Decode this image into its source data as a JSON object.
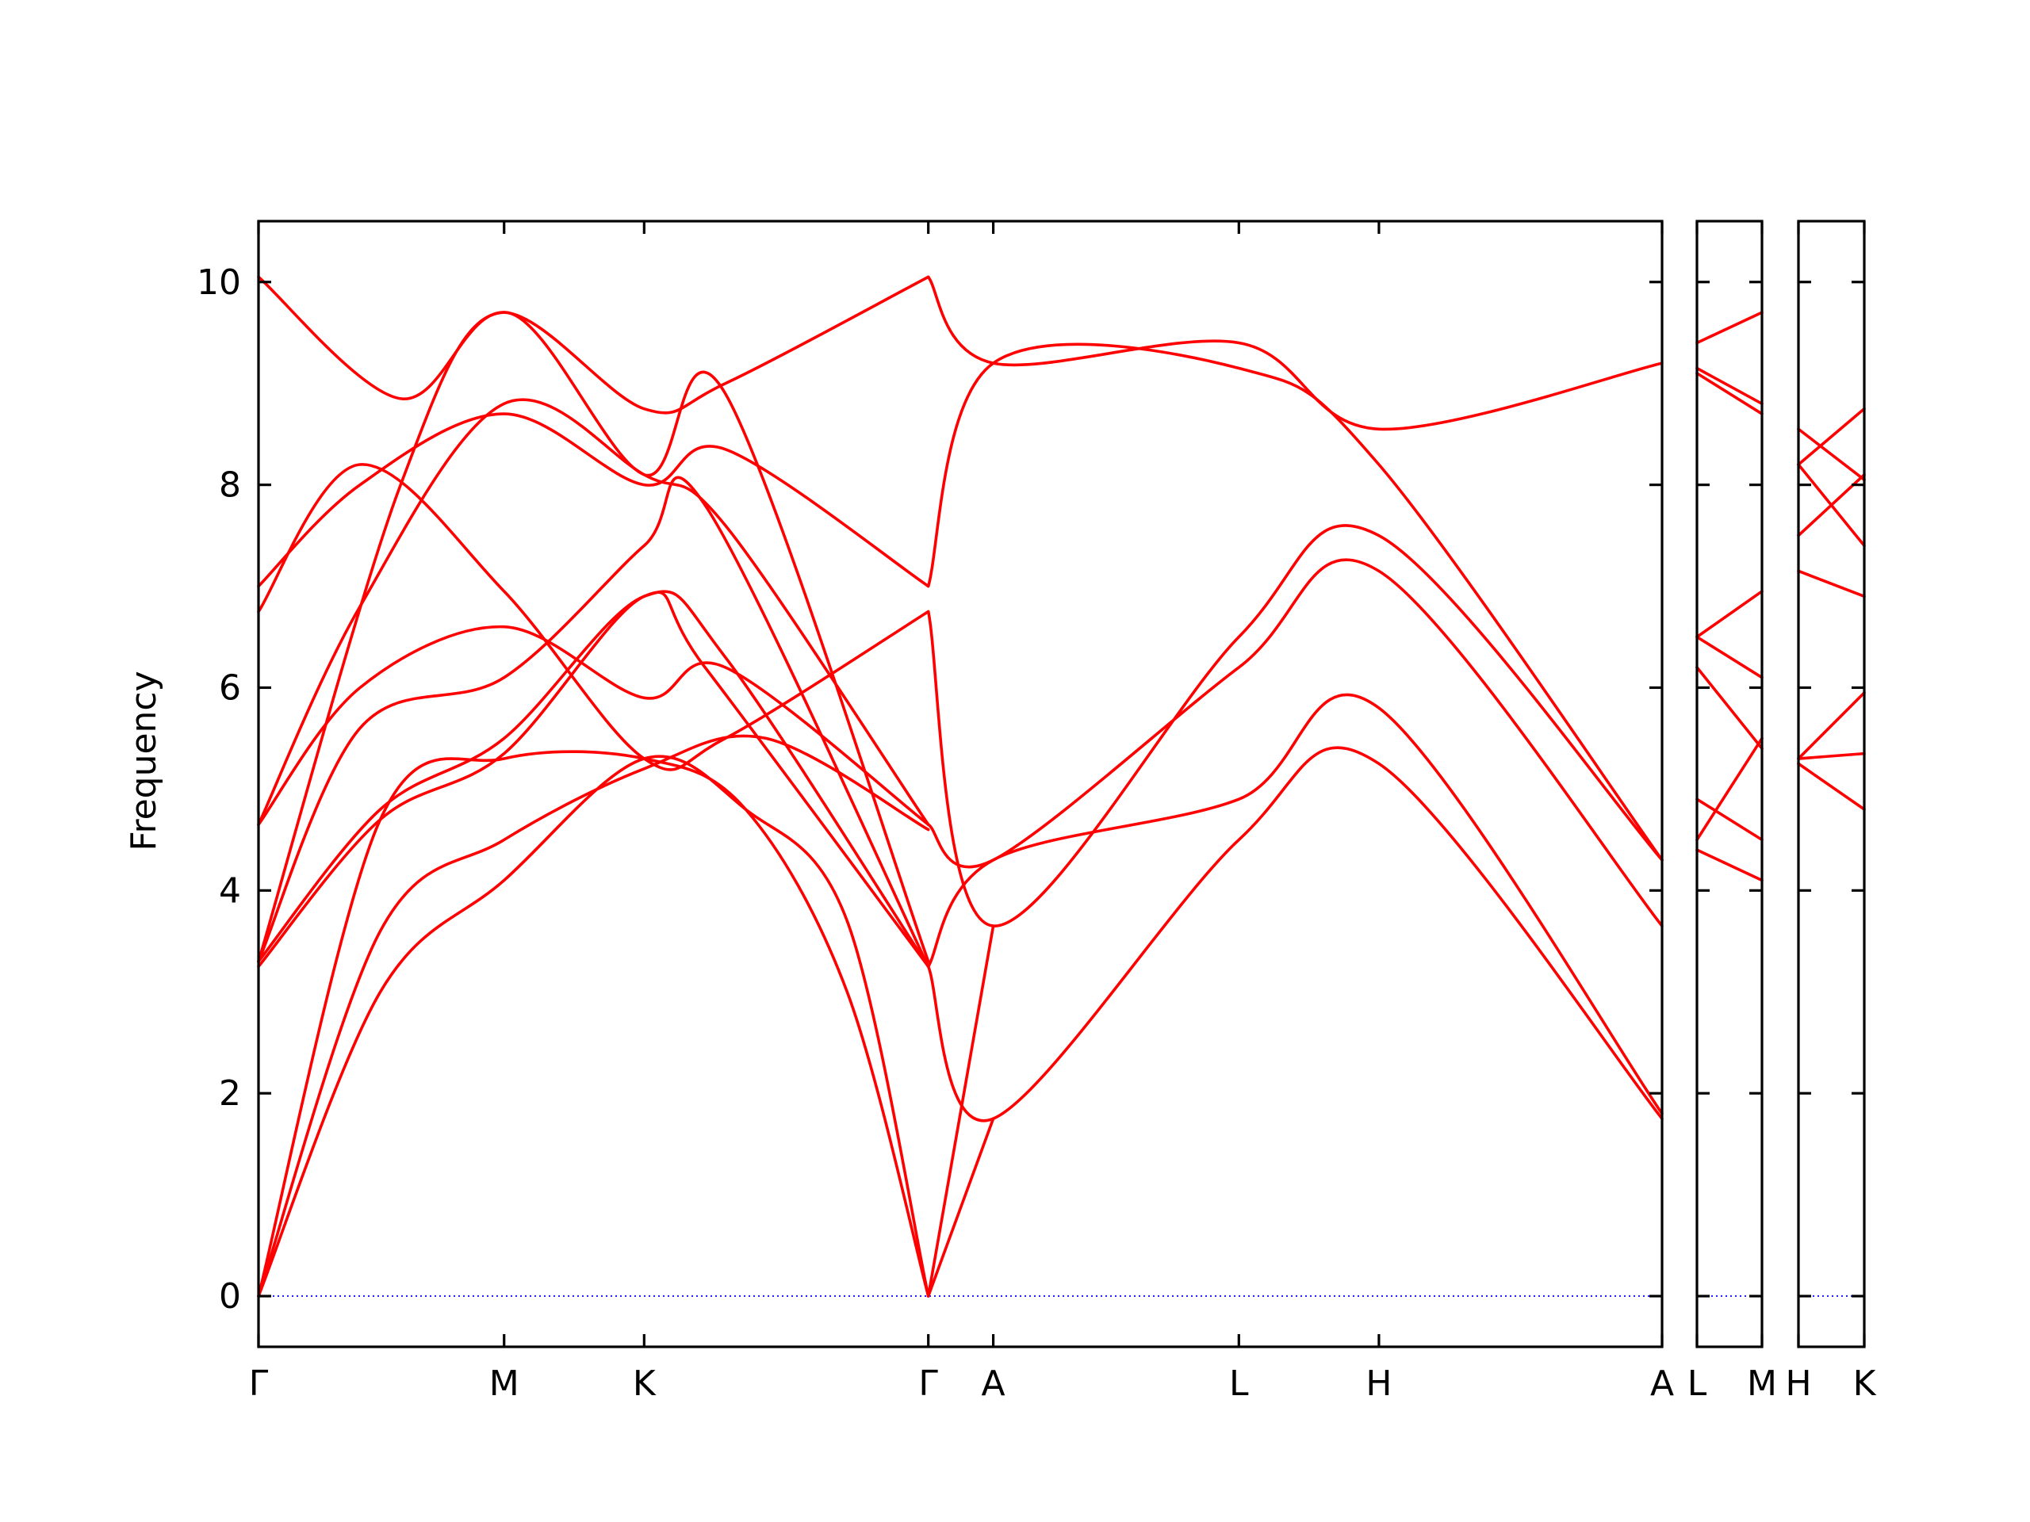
{
  "chart_data": {
    "type": "line",
    "ylabel": "Frequency",
    "xlabel": "",
    "ylim": [
      -0.5,
      10.6
    ],
    "yticks": [
      0,
      2,
      4,
      6,
      8,
      10
    ],
    "grid": false,
    "colors": {
      "bands": "#ff0000",
      "zero_line": "#0000ff"
    },
    "panels": [
      {
        "id": "p1",
        "xlim": [
          0,
          6.915
        ],
        "ticks": [
          {
            "x": 0,
            "label": "Γ"
          },
          {
            "x": 1.21,
            "label": "M"
          },
          {
            "x": 1.9,
            "label": "K"
          },
          {
            "x": 3.3,
            "label": "Γ"
          },
          {
            "x": 3.62,
            "label": "A"
          },
          {
            "x": 4.83,
            "label": "L"
          },
          {
            "x": 5.52,
            "label": "H"
          },
          {
            "x": 6.915,
            "label": "A"
          }
        ],
        "bands": [
          {
            "x": [
              0,
              0.6,
              1.21,
              1.9,
              2.5,
              3.3
            ],
            "y": [
              0,
              3.6,
              4.5,
              5.2,
              5.5,
              4.6
            ]
          },
          {
            "x": [
              0,
              0.6,
              1.21,
              1.9,
              2.4,
              2.9,
              3.3
            ],
            "y": [
              0,
              3.0,
              4.1,
              5.3,
              4.8,
              3.7,
              0
            ]
          },
          {
            "x": [
              0,
              0.6,
              1.21,
              1.9,
              2.4,
              2.9,
              3.3
            ],
            "y": [
              0,
              4.7,
              5.3,
              5.3,
              4.8,
              3.0,
              0
            ]
          },
          {
            "x": [
              0,
              0.6,
              1.21,
              1.9,
              2.2,
              3.3
            ],
            "y": [
              3.25,
              4.7,
              5.35,
              6.9,
              6.2,
              3.25
            ]
          },
          {
            "x": [
              0,
              0.6,
              1.21,
              1.9,
              2.3,
              3.3
            ],
            "y": [
              3.3,
              4.8,
              5.5,
              6.9,
              6.3,
              3.25
            ]
          },
          {
            "x": [
              0,
              0.5,
              1.21,
              1.9,
              2.2,
              3.3
            ],
            "y": [
              3.3,
              5.6,
              6.1,
              7.4,
              7.8,
              3.25
            ]
          },
          {
            "x": [
              0,
              0.5,
              1.21,
              1.9,
              2.3,
              3.3
            ],
            "y": [
              4.65,
              6.0,
              6.6,
              5.9,
              6.2,
              4.65
            ]
          },
          {
            "x": [
              0,
              0.5,
              1.21,
              1.9,
              2.3,
              3.3
            ],
            "y": [
              4.65,
              6.8,
              8.8,
              8.1,
              7.6,
              4.65
            ]
          },
          {
            "x": [
              0,
              0.5,
              1.21,
              1.9,
              2.3,
              3.3
            ],
            "y": [
              6.75,
              8.2,
              6.95,
              5.3,
              5.5,
              6.75
            ]
          },
          {
            "x": [
              0,
              0.5,
              1.21,
              1.9,
              2.3,
              3.3
            ],
            "y": [
              7.0,
              8.0,
              8.7,
              8.0,
              8.35,
              7.0
            ]
          },
          {
            "x": [
              0,
              0.7,
              1.21,
              1.9,
              2.3,
              3.3
            ],
            "y": [
              10.05,
              8.85,
              9.7,
              8.75,
              9.0,
              10.05
            ]
          },
          {
            "x": [
              0,
              0.7,
              1.21,
              1.9,
              2.3,
              3.3
            ],
            "y": [
              3.3,
              8.0,
              9.7,
              8.1,
              8.9,
              3.3
            ]
          },
          {
            "x": [
              3.3,
              3.62,
              4.83,
              5.52,
              6.915
            ],
            "y": [
              10.05,
              9.2,
              9.4,
              8.55,
              9.2
            ]
          },
          {
            "x": [
              3.3,
              3.62,
              4.83,
              5.52,
              6.915
            ],
            "y": [
              7.0,
              9.2,
              9.15,
              8.2,
              4.3
            ]
          },
          {
            "x": [
              3.3,
              3.62,
              4.83,
              5.52,
              6.915
            ],
            "y": [
              6.75,
              3.65,
              6.5,
              7.5,
              4.3
            ]
          },
          {
            "x": [
              3.3,
              3.62,
              4.83,
              5.52,
              6.915
            ],
            "y": [
              4.65,
              4.3,
              6.2,
              7.15,
              3.65
            ]
          },
          {
            "x": [
              3.3,
              3.62,
              4.83,
              5.52,
              6.915
            ],
            "y": [
              3.25,
              4.3,
              4.9,
              5.8,
              1.8
            ]
          },
          {
            "x": [
              3.3,
              3.62,
              4.83,
              5.52,
              6.915
            ],
            "y": [
              3.25,
              1.75,
              4.5,
              5.25,
              1.75
            ]
          },
          {
            "x": [
              3.3,
              3.62
            ],
            "y": [
              0,
              1.75
            ]
          },
          {
            "x": [
              3.3,
              3.62
            ],
            "y": [
              0,
              3.65
            ]
          }
        ]
      },
      {
        "id": "p2",
        "xlim": [
          0,
          1
        ],
        "ticks": [
          {
            "x": 0,
            "label": "L"
          },
          {
            "x": 1,
            "label": "M"
          }
        ],
        "bands": [
          {
            "x": [
              0,
              1
            ],
            "y": [
              9.4,
              9.7
            ]
          },
          {
            "x": [
              0,
              1
            ],
            "y": [
              9.15,
              8.8
            ]
          },
          {
            "x": [
              0,
              1
            ],
            "y": [
              9.1,
              8.7
            ]
          },
          {
            "x": [
              0,
              1
            ],
            "y": [
              6.5,
              6.95
            ]
          },
          {
            "x": [
              0,
              1
            ],
            "y": [
              6.5,
              6.1
            ]
          },
          {
            "x": [
              0,
              1
            ],
            "y": [
              6.2,
              5.4
            ]
          },
          {
            "x": [
              0,
              1
            ],
            "y": [
              4.9,
              4.5
            ]
          },
          {
            "x": [
              0,
              1
            ],
            "y": [
              4.5,
              5.5
            ]
          },
          {
            "x": [
              0,
              1
            ],
            "y": [
              4.4,
              4.1
            ]
          }
        ]
      },
      {
        "id": "p3",
        "xlim": [
          0,
          1
        ],
        "ticks": [
          {
            "x": 0,
            "label": "H"
          },
          {
            "x": 1,
            "label": "K"
          }
        ],
        "bands": [
          {
            "x": [
              0,
              1
            ],
            "y": [
              8.55,
              8.05
            ]
          },
          {
            "x": [
              0,
              1
            ],
            "y": [
              8.2,
              8.75
            ]
          },
          {
            "x": [
              0,
              1
            ],
            "y": [
              8.2,
              7.4
            ]
          },
          {
            "x": [
              0,
              1
            ],
            "y": [
              7.5,
              8.1
            ]
          },
          {
            "x": [
              0,
              1
            ],
            "y": [
              7.15,
              6.9
            ]
          },
          {
            "x": [
              0,
              1
            ],
            "y": [
              5.3,
              5.95
            ]
          },
          {
            "x": [
              0,
              1
            ],
            "y": [
              5.3,
              5.35
            ]
          },
          {
            "x": [
              0,
              1
            ],
            "y": [
              5.25,
              4.8
            ]
          }
        ]
      }
    ]
  }
}
